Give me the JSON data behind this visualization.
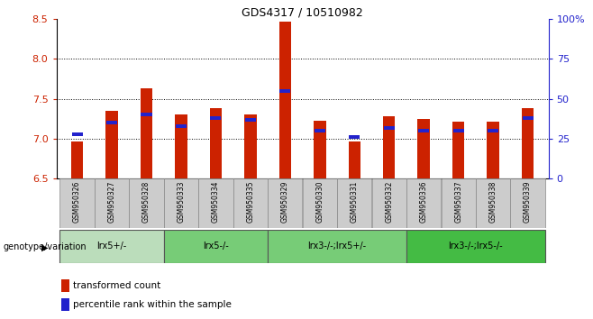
{
  "title": "GDS4317 / 10510982",
  "samples": [
    "GSM950326",
    "GSM950327",
    "GSM950328",
    "GSM950333",
    "GSM950334",
    "GSM950335",
    "GSM950329",
    "GSM950330",
    "GSM950331",
    "GSM950332",
    "GSM950336",
    "GSM950337",
    "GSM950338",
    "GSM950339"
  ],
  "red_values": [
    6.97,
    7.35,
    7.63,
    7.31,
    7.38,
    7.3,
    8.47,
    7.23,
    6.97,
    7.28,
    7.25,
    7.22,
    7.22,
    7.38
  ],
  "blue_percentiles": [
    28,
    35,
    40,
    33,
    38,
    37,
    55,
    30,
    26,
    32,
    30,
    30,
    30,
    38
  ],
  "ymin": 6.5,
  "ymax": 8.5,
  "y_ticks_left": [
    6.5,
    7.0,
    7.5,
    8.0,
    8.5
  ],
  "y_ticks_right": [
    0,
    25,
    50,
    75,
    100
  ],
  "bar_color": "#cc2200",
  "blue_color": "#2222cc",
  "groups": [
    {
      "label": "lrx5+/-",
      "start": 0,
      "end": 3,
      "color": "#bbddbb"
    },
    {
      "label": "lrx5-/-",
      "start": 3,
      "end": 6,
      "color": "#77cc77"
    },
    {
      "label": "lrx3-/-;lrx5+/-",
      "start": 6,
      "end": 10,
      "color": "#77cc77"
    },
    {
      "label": "lrx3-/-;lrx5-/-",
      "start": 10,
      "end": 14,
      "color": "#44bb44"
    }
  ],
  "group_row_label": "genotype/variation",
  "legend_red": "transformed count",
  "legend_blue": "percentile rank within the sample",
  "bar_width": 0.35,
  "background_color": "#ffffff",
  "sample_row_color": "#cccccc"
}
